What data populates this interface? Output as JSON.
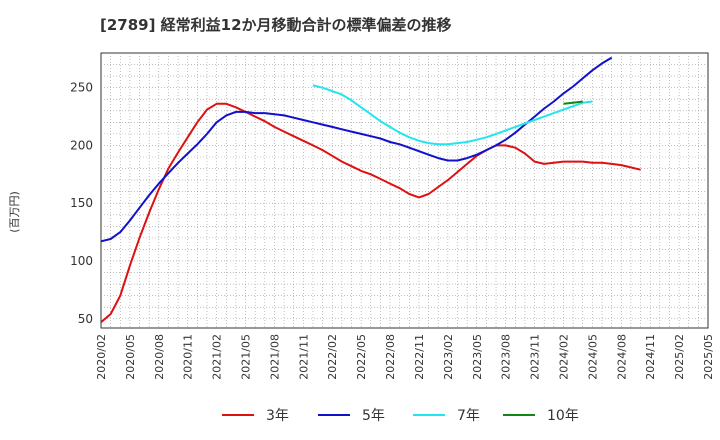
{
  "chart_data": {
    "type": "line",
    "title": "[2789]  経常利益12か月移動合計の標準偏差の推移",
    "ylabel": "(百万円)",
    "xlabel": "",
    "ylim": [
      42,
      280
    ],
    "yticks": [
      50,
      100,
      150,
      200,
      250
    ],
    "xlim": [
      "2020-02",
      "2025-05"
    ],
    "xticks": [
      "2020/02",
      "2020/05",
      "2020/08",
      "2020/11",
      "2021/02",
      "2021/05",
      "2021/08",
      "2021/11",
      "2022/02",
      "2022/05",
      "2022/08",
      "2022/11",
      "2023/02",
      "2023/05",
      "2023/08",
      "2023/11",
      "2024/02",
      "2024/05",
      "2024/08",
      "2024/11",
      "2025/02",
      "2025/05"
    ],
    "grid": true,
    "legend_position": "bottom",
    "series": [
      {
        "name": "3年",
        "color": "#dd1111",
        "points": [
          [
            "2020-02",
            47
          ],
          [
            "2020-03",
            54
          ],
          [
            "2020-04",
            70
          ],
          [
            "2020-05",
            96
          ],
          [
            "2020-06",
            120
          ],
          [
            "2020-07",
            142
          ],
          [
            "2020-08",
            162
          ],
          [
            "2020-09",
            180
          ],
          [
            "2020-10",
            194
          ],
          [
            "2020-11",
            207
          ],
          [
            "2020-12",
            220
          ],
          [
            "2021-01",
            231
          ],
          [
            "2021-02",
            236
          ],
          [
            "2021-03",
            236
          ],
          [
            "2021-04",
            233
          ],
          [
            "2021-05",
            229
          ],
          [
            "2021-06",
            225
          ],
          [
            "2021-07",
            221
          ],
          [
            "2021-08",
            216
          ],
          [
            "2021-09",
            212
          ],
          [
            "2021-10",
            208
          ],
          [
            "2021-11",
            204
          ],
          [
            "2021-12",
            200
          ],
          [
            "2022-01",
            196
          ],
          [
            "2022-02",
            191
          ],
          [
            "2022-03",
            186
          ],
          [
            "2022-04",
            182
          ],
          [
            "2022-05",
            178
          ],
          [
            "2022-06",
            175
          ],
          [
            "2022-07",
            171
          ],
          [
            "2022-08",
            167
          ],
          [
            "2022-09",
            163
          ],
          [
            "2022-10",
            158
          ],
          [
            "2022-11",
            155
          ],
          [
            "2022-12",
            158
          ],
          [
            "2023-01",
            164
          ],
          [
            "2023-02",
            170
          ],
          [
            "2023-03",
            177
          ],
          [
            "2023-04",
            184
          ],
          [
            "2023-05",
            191
          ],
          [
            "2023-06",
            196
          ],
          [
            "2023-07",
            200
          ],
          [
            "2023-08",
            200
          ],
          [
            "2023-09",
            198
          ],
          [
            "2023-10",
            193
          ],
          [
            "2023-11",
            186
          ],
          [
            "2023-12",
            184
          ],
          [
            "2024-01",
            185
          ],
          [
            "2024-02",
            186
          ],
          [
            "2024-03",
            186
          ],
          [
            "2024-04",
            186
          ],
          [
            "2024-05",
            185
          ],
          [
            "2024-06",
            185
          ],
          [
            "2024-07",
            184
          ],
          [
            "2024-08",
            183
          ],
          [
            "2024-09",
            181
          ],
          [
            "2024-10",
            179
          ]
        ]
      },
      {
        "name": "5年",
        "color": "#1111cc",
        "points": [
          [
            "2020-02",
            117
          ],
          [
            "2020-03",
            119
          ],
          [
            "2020-04",
            125
          ],
          [
            "2020-05",
            135
          ],
          [
            "2020-06",
            146
          ],
          [
            "2020-07",
            157
          ],
          [
            "2020-08",
            167
          ],
          [
            "2020-09",
            176
          ],
          [
            "2020-10",
            185
          ],
          [
            "2020-11",
            193
          ],
          [
            "2020-12",
            201
          ],
          [
            "2021-01",
            210
          ],
          [
            "2021-02",
            220
          ],
          [
            "2021-03",
            226
          ],
          [
            "2021-04",
            229
          ],
          [
            "2021-05",
            229
          ],
          [
            "2021-06",
            228
          ],
          [
            "2021-07",
            228
          ],
          [
            "2021-08",
            227
          ],
          [
            "2021-09",
            226
          ],
          [
            "2021-10",
            224
          ],
          [
            "2021-11",
            222
          ],
          [
            "2021-12",
            220
          ],
          [
            "2022-01",
            218
          ],
          [
            "2022-02",
            216
          ],
          [
            "2022-03",
            214
          ],
          [
            "2022-04",
            212
          ],
          [
            "2022-05",
            210
          ],
          [
            "2022-06",
            208
          ],
          [
            "2022-07",
            206
          ],
          [
            "2022-08",
            203
          ],
          [
            "2022-09",
            201
          ],
          [
            "2022-10",
            198
          ],
          [
            "2022-11",
            195
          ],
          [
            "2022-12",
            192
          ],
          [
            "2023-01",
            189
          ],
          [
            "2023-02",
            187
          ],
          [
            "2023-03",
            187
          ],
          [
            "2023-04",
            189
          ],
          [
            "2023-05",
            192
          ],
          [
            "2023-06",
            196
          ],
          [
            "2023-07",
            200
          ],
          [
            "2023-08",
            205
          ],
          [
            "2023-09",
            211
          ],
          [
            "2023-10",
            218
          ],
          [
            "2023-11",
            225
          ],
          [
            "2023-12",
            232
          ],
          [
            "2024-01",
            238
          ],
          [
            "2024-02",
            245
          ],
          [
            "2024-03",
            251
          ],
          [
            "2024-04",
            258
          ],
          [
            "2024-05",
            265
          ],
          [
            "2024-06",
            271
          ],
          [
            "2024-07",
            276
          ]
        ]
      },
      {
        "name": "7年",
        "color": "#22e5ee",
        "points": [
          [
            "2021-12",
            252
          ],
          [
            "2022-01",
            250
          ],
          [
            "2022-02",
            247
          ],
          [
            "2022-03",
            244
          ],
          [
            "2022-04",
            239
          ],
          [
            "2022-05",
            233
          ],
          [
            "2022-06",
            227
          ],
          [
            "2022-07",
            221
          ],
          [
            "2022-08",
            216
          ],
          [
            "2022-09",
            211
          ],
          [
            "2022-10",
            207
          ],
          [
            "2022-11",
            204
          ],
          [
            "2022-12",
            202
          ],
          [
            "2023-01",
            201
          ],
          [
            "2023-02",
            201
          ],
          [
            "2023-03",
            202
          ],
          [
            "2023-04",
            203
          ],
          [
            "2023-05",
            205
          ],
          [
            "2023-06",
            207
          ],
          [
            "2023-07",
            210
          ],
          [
            "2023-08",
            213
          ],
          [
            "2023-09",
            216
          ],
          [
            "2023-10",
            219
          ],
          [
            "2023-11",
            222
          ],
          [
            "2023-12",
            225
          ],
          [
            "2024-01",
            228
          ],
          [
            "2024-02",
            231
          ],
          [
            "2024-03",
            234
          ],
          [
            "2024-04",
            237
          ],
          [
            "2024-05",
            238
          ]
        ]
      },
      {
        "name": "10年",
        "color": "#118811",
        "points": [
          [
            "2024-02",
            236
          ],
          [
            "2024-03",
            237
          ],
          [
            "2024-04",
            238
          ]
        ]
      }
    ]
  }
}
